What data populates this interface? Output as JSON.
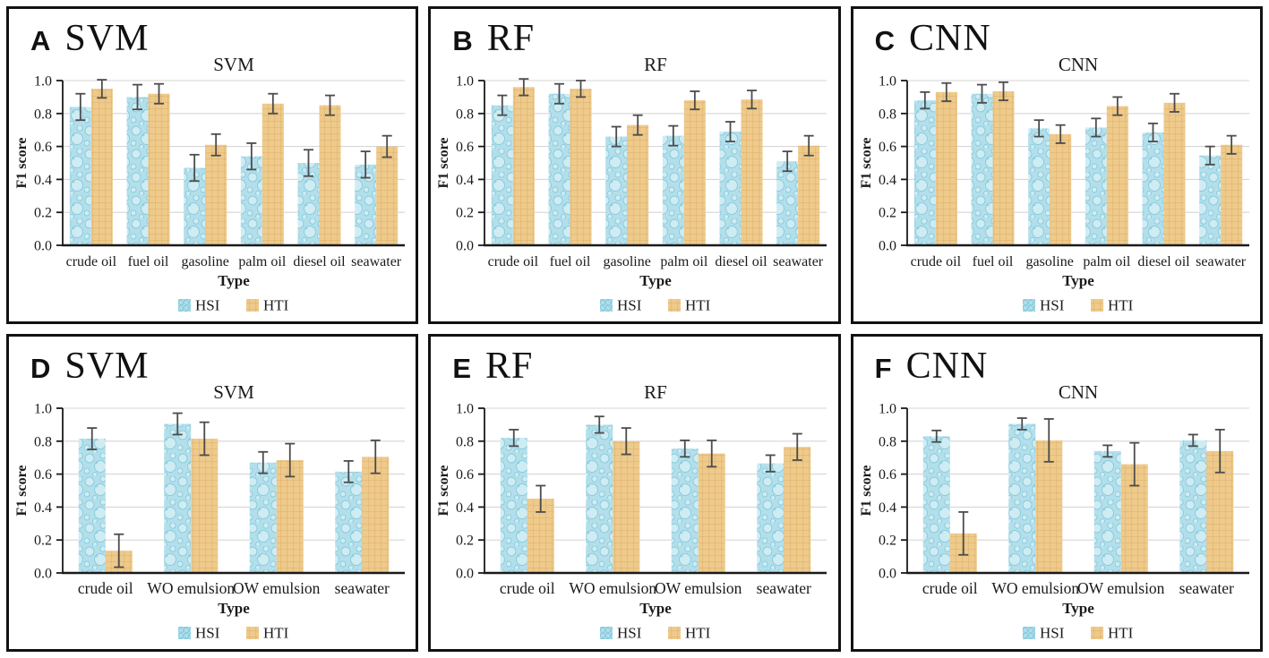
{
  "figure": {
    "ylabel": "F1 score",
    "xlabel": "Type",
    "legend_labels": [
      "HSI",
      "HTI"
    ],
    "ytick_labels": [
      "0.0",
      "0.2",
      "0.4",
      "0.6",
      "0.8",
      "1.0"
    ],
    "ytick_values": [
      0.0,
      0.2,
      0.4,
      0.6,
      0.8,
      1.0
    ]
  },
  "colors": {
    "hsi_fill": "#b3dfeb",
    "hsi_bubble": "#7cc5da",
    "hsi_bubble_light": "#d9f0f6",
    "hti_fill": "#eeca8b",
    "hti_weave": "#d9ad69",
    "error_bar": "#4c4c4c",
    "gridline": "#d6d6d6",
    "axis": "#1a1a1a",
    "text": "#1a1a1a",
    "panel_border": "#121212"
  },
  "chart_data": [
    {
      "panel_label": "A",
      "algorithm": "SVM",
      "title": "SVM",
      "type": "bar",
      "xlabel": "Type",
      "ylabel": "F1 score",
      "ylim": [
        0.0,
        1.0
      ],
      "grid": true,
      "legend_position": "bottom",
      "categories": [
        "crude oil",
        "fuel oil",
        "gasoline",
        "palm oil",
        "diesel oil",
        "seawater"
      ],
      "series": [
        {
          "name": "HSI",
          "values": [
            0.84,
            0.9,
            0.47,
            0.54,
            0.5,
            0.49
          ],
          "errors": [
            0.08,
            0.075,
            0.08,
            0.08,
            0.08,
            0.08
          ]
        },
        {
          "name": "HTI",
          "values": [
            0.95,
            0.92,
            0.61,
            0.86,
            0.85,
            0.6
          ],
          "errors": [
            0.055,
            0.06,
            0.065,
            0.06,
            0.06,
            0.065
          ]
        }
      ]
    },
    {
      "panel_label": "B",
      "algorithm": "RF",
      "title": "RF",
      "type": "bar",
      "xlabel": "Type",
      "ylabel": "F1 score",
      "ylim": [
        0.0,
        1.0
      ],
      "grid": true,
      "legend_position": "bottom",
      "categories": [
        "crude oil",
        "fuel oil",
        "gasoline",
        "palm oil",
        "diesel oil",
        "seawater"
      ],
      "series": [
        {
          "name": "HSI",
          "values": [
            0.85,
            0.92,
            0.66,
            0.665,
            0.69,
            0.51
          ],
          "errors": [
            0.06,
            0.06,
            0.06,
            0.06,
            0.06,
            0.06
          ]
        },
        {
          "name": "HTI",
          "values": [
            0.96,
            0.95,
            0.73,
            0.88,
            0.885,
            0.605
          ],
          "errors": [
            0.05,
            0.05,
            0.06,
            0.055,
            0.055,
            0.06
          ]
        }
      ]
    },
    {
      "panel_label": "C",
      "algorithm": "CNN",
      "title": "CNN",
      "type": "bar",
      "xlabel": "Type",
      "ylabel": "F1 score",
      "ylim": [
        0.0,
        1.0
      ],
      "grid": true,
      "legend_position": "bottom",
      "categories": [
        "crude oil",
        "fuel oil",
        "gasoline",
        "palm oil",
        "diesel oil",
        "seawater"
      ],
      "series": [
        {
          "name": "HSI",
          "values": [
            0.88,
            0.92,
            0.71,
            0.715,
            0.685,
            0.545
          ],
          "errors": [
            0.05,
            0.055,
            0.05,
            0.055,
            0.055,
            0.055
          ]
        },
        {
          "name": "HTI",
          "values": [
            0.93,
            0.935,
            0.675,
            0.845,
            0.865,
            0.61
          ],
          "errors": [
            0.055,
            0.055,
            0.055,
            0.055,
            0.055,
            0.055
          ]
        }
      ]
    },
    {
      "panel_label": "D",
      "algorithm": "SVM",
      "title": "SVM",
      "type": "bar",
      "xlabel": "Type",
      "ylabel": "F1 score",
      "ylim": [
        0.0,
        1.0
      ],
      "grid": true,
      "legend_position": "bottom",
      "categories": [
        "crude oil",
        "WO emulsion",
        "OW emulsion",
        "seawater"
      ],
      "series": [
        {
          "name": "HSI",
          "values": [
            0.815,
            0.905,
            0.67,
            0.615
          ],
          "errors": [
            0.065,
            0.065,
            0.065,
            0.065
          ]
        },
        {
          "name": "HTI",
          "values": [
            0.135,
            0.815,
            0.685,
            0.705
          ],
          "errors": [
            0.1,
            0.1,
            0.1,
            0.1
          ]
        }
      ]
    },
    {
      "panel_label": "E",
      "algorithm": "RF",
      "title": "RF",
      "type": "bar",
      "xlabel": "Type",
      "ylabel": "F1 score",
      "ylim": [
        0.0,
        1.0
      ],
      "grid": true,
      "legend_position": "bottom",
      "categories": [
        "crude oil",
        "WO emulsion",
        "OW emulsion",
        "seawater"
      ],
      "series": [
        {
          "name": "HSI",
          "values": [
            0.82,
            0.9,
            0.755,
            0.665
          ],
          "errors": [
            0.05,
            0.05,
            0.05,
            0.05
          ]
        },
        {
          "name": "HTI",
          "values": [
            0.45,
            0.8,
            0.725,
            0.765
          ],
          "errors": [
            0.08,
            0.08,
            0.08,
            0.08
          ]
        }
      ]
    },
    {
      "panel_label": "F",
      "algorithm": "CNN",
      "title": "CNN",
      "type": "bar",
      "xlabel": "Type",
      "ylabel": "F1 score",
      "ylim": [
        0.0,
        1.0
      ],
      "grid": true,
      "legend_position": "bottom",
      "categories": [
        "crude oil",
        "WO emulsion",
        "OW emulsion",
        "seawater"
      ],
      "series": [
        {
          "name": "HSI",
          "values": [
            0.83,
            0.905,
            0.74,
            0.805
          ],
          "errors": [
            0.035,
            0.035,
            0.035,
            0.035
          ]
        },
        {
          "name": "HTI",
          "values": [
            0.24,
            0.805,
            0.66,
            0.74
          ],
          "errors": [
            0.13,
            0.13,
            0.13,
            0.13
          ]
        }
      ]
    }
  ]
}
